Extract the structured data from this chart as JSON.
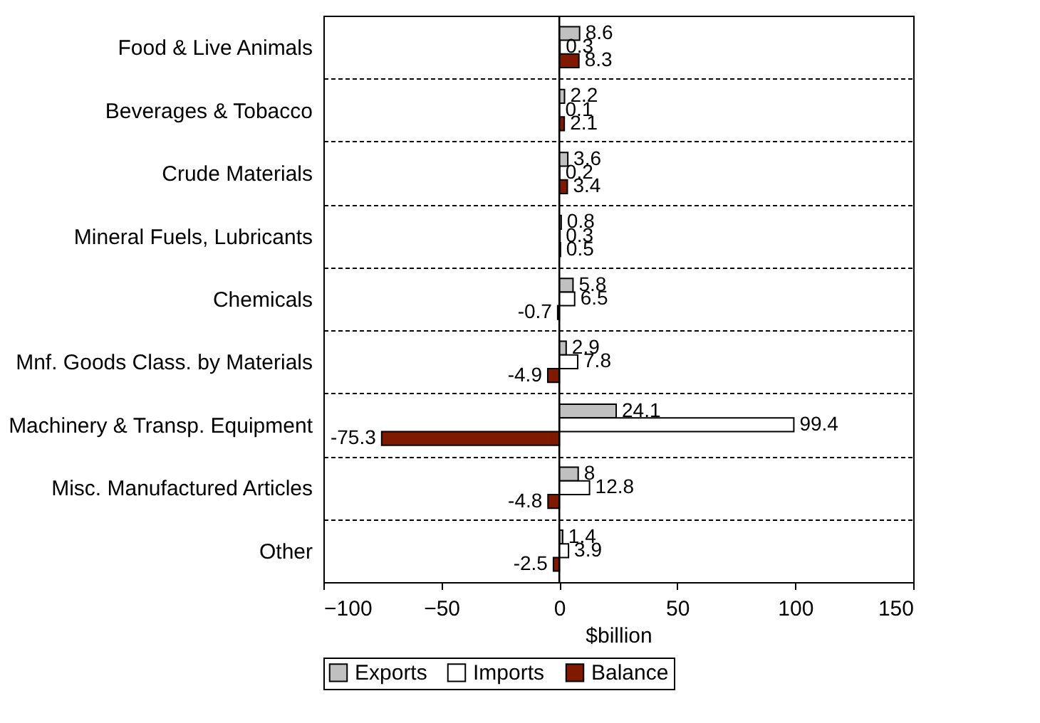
{
  "chart_data": {
    "type": "bar",
    "orientation": "horizontal",
    "xlabel": "$billion",
    "categories": [
      "Food & Live Animals",
      "Beverages & Tobacco",
      "Crude Materials",
      "Mineral Fuels, Lubricants",
      "Chemicals",
      "Mnf. Goods Class. by Materials",
      "Machinery & Transp. Equipment",
      "Misc. Manufactured Articles",
      "Other"
    ],
    "series": [
      {
        "name": "Exports",
        "color": "#c0c0c0",
        "values": [
          8.6,
          2.2,
          3.6,
          0.8,
          5.8,
          2.9,
          24.1,
          8,
          1.4
        ]
      },
      {
        "name": "Imports",
        "color": "#ffffff",
        "values": [
          0.3,
          0.1,
          0.2,
          0.3,
          6.5,
          7.8,
          99.4,
          12.8,
          3.9
        ]
      },
      {
        "name": "Balance",
        "color": "#7f1a00",
        "values": [
          8.3,
          2.1,
          3.4,
          0.5,
          -0.7,
          -4.9,
          -75.3,
          -4.8,
          -2.5
        ]
      }
    ],
    "xlim": [
      -100,
      150
    ],
    "xticks": [
      -100,
      -50,
      0,
      50,
      100,
      150
    ],
    "ref_lines": [
      {
        "axis": "x",
        "value": 0,
        "color": "#000000"
      }
    ],
    "grid": "y",
    "legend": "bottom",
    "data_labels": true
  }
}
